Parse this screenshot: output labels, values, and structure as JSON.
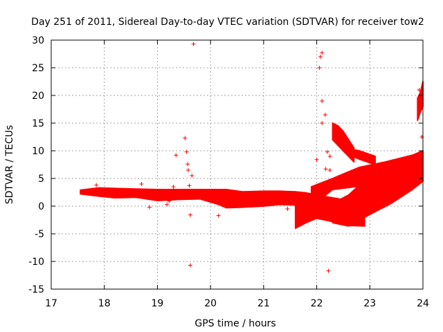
{
  "chart_data": {
    "type": "scatter",
    "title": "Day 251 of 2011, Sidereal Day-to-day VTEC variation (SDTVAR) for receiver tow2",
    "xlabel": "GPS time / hours",
    "ylabel": "SDTVAR / TECUs",
    "xlim": [
      17,
      24
    ],
    "ylim": [
      -15,
      30
    ],
    "xticks": [
      17,
      18,
      19,
      20,
      21,
      22,
      23,
      24
    ],
    "yticks": [
      -15,
      -10,
      -5,
      0,
      5,
      10,
      15,
      20,
      25,
      30
    ],
    "grid": true,
    "marker": "+",
    "color": "#ff0000",
    "bands": [
      {
        "name": "main-band-1",
        "x": [
          17.55,
          17.9,
          18.2,
          18.6,
          19.0,
          19.4,
          19.8,
          20.15,
          20.3,
          20.6,
          21.0,
          21.3,
          21.6
        ],
        "ymin": [
          2.2,
          1.8,
          1.5,
          1.6,
          1.0,
          1.2,
          1.3,
          0.3,
          -0.3,
          -0.2,
          0.0,
          0.3,
          0.2
        ],
        "ymax": [
          2.9,
          3.3,
          3.2,
          3.1,
          3.0,
          3.0,
          3.0,
          3.0,
          3.0,
          2.6,
          2.7,
          2.7,
          2.6
        ]
      },
      {
        "name": "main-band-2",
        "x": [
          21.6,
          21.8,
          22.0,
          22.3,
          22.6,
          22.9
        ],
        "ymin": [
          -4.0,
          -3.0,
          -2.2,
          -2.8,
          -3.5,
          -3.6
        ],
        "ymax": [
          2.6,
          2.4,
          2.0,
          1.5,
          1.0,
          0.6
        ]
      },
      {
        "name": "upper-band",
        "x": [
          21.9,
          22.3,
          22.8,
          23.3,
          23.8,
          24.0
        ],
        "ymin": [
          0.0,
          3.0,
          3.6,
          4.2,
          4.8,
          5.2
        ],
        "ymax": [
          3.5,
          5.0,
          7.0,
          8.0,
          9.2,
          10.0
        ]
      },
      {
        "name": "lower-wide-band",
        "x": [
          22.3,
          22.6,
          23.0,
          23.4,
          23.8,
          24.0
        ],
        "ymin": [
          -3.0,
          -3.6,
          -1.5,
          0.5,
          3.0,
          4.5
        ],
        "ymax": [
          0.5,
          2.0,
          5.5,
          7.5,
          9.0,
          9.8
        ]
      },
      {
        "name": "rise-band",
        "x": [
          22.3,
          22.4,
          22.5,
          22.7
        ],
        "ymin": [
          12.0,
          11.0,
          10.0,
          8.0
        ],
        "ymax": [
          15.0,
          14.5,
          13.5,
          10.5
        ]
      },
      {
        "name": "bridge-band",
        "x": [
          22.55,
          22.8,
          23.1
        ],
        "ymin": [
          9.5,
          8.5,
          7.5
        ],
        "ymax": [
          10.5,
          10.0,
          9.0
        ]
      },
      {
        "name": "end-rise",
        "x": [
          23.9,
          23.95,
          24.0
        ],
        "ymin": [
          15.5,
          17.0,
          18.0
        ],
        "ymax": [
          19.5,
          20.5,
          22.5
        ]
      }
    ],
    "points": [
      [
        17.85,
        3.8
      ],
      [
        18.7,
        4.0
      ],
      [
        18.85,
        -0.2
      ],
      [
        19.18,
        0.3
      ],
      [
        19.22,
        0.9
      ],
      [
        19.3,
        3.5
      ],
      [
        19.35,
        9.2
      ],
      [
        19.52,
        12.3
      ],
      [
        19.55,
        9.8
      ],
      [
        19.57,
        7.6
      ],
      [
        19.58,
        6.5
      ],
      [
        19.6,
        3.7
      ],
      [
        19.62,
        -1.6
      ],
      [
        19.62,
        -10.7
      ],
      [
        19.65,
        5.5
      ],
      [
        19.68,
        29.3
      ],
      [
        20.15,
        -1.7
      ],
      [
        21.45,
        -0.5
      ],
      [
        22.0,
        8.4
      ],
      [
        22.05,
        25.0
      ],
      [
        22.07,
        27.0
      ],
      [
        22.1,
        27.7
      ],
      [
        22.1,
        19.0
      ],
      [
        22.1,
        15.0
      ],
      [
        22.16,
        16.5
      ],
      [
        22.2,
        9.8
      ],
      [
        22.17,
        6.7
      ],
      [
        22.25,
        6.5
      ],
      [
        22.25,
        9.0
      ],
      [
        22.22,
        -11.7
      ],
      [
        23.98,
        12.5
      ],
      [
        23.93,
        21.0
      ],
      [
        23.95,
        19.0
      ]
    ]
  }
}
